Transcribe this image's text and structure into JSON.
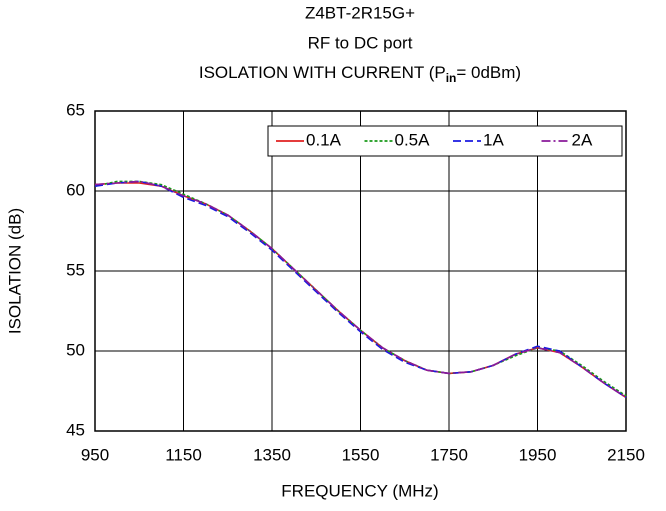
{
  "chart_data": {
    "type": "line",
    "title": [
      "Z4BT-2R15G+",
      "RF to DC port"
    ],
    "title_line3": {
      "text": "ISOLATION WITH CURRENT (P",
      "subscript": "in",
      "suffix": "= 0dBm)"
    },
    "xlabel": "FREQUENCY (MHz)",
    "ylabel": "ISOLATION (dB)",
    "x": [
      950,
      1000,
      1050,
      1100,
      1150,
      1200,
      1250,
      1300,
      1350,
      1400,
      1450,
      1500,
      1550,
      1600,
      1650,
      1700,
      1750,
      1800,
      1850,
      1900,
      1950,
      2000,
      2050,
      2100,
      2150
    ],
    "series": [
      {
        "name": "0.1A",
        "color": "#e02020",
        "dash": "solid",
        "values": [
          60.4,
          60.5,
          60.5,
          60.3,
          59.7,
          59.2,
          58.5,
          57.5,
          56.4,
          55.1,
          53.8,
          52.5,
          51.3,
          50.2,
          49.4,
          48.8,
          48.6,
          48.7,
          49.1,
          49.8,
          50.2,
          49.9,
          49.0,
          48.0,
          47.1
        ]
      },
      {
        "name": "0.5A",
        "color": "#1a9a1a",
        "dash": "dot",
        "values": [
          60.3,
          60.6,
          60.6,
          60.4,
          59.8,
          59.2,
          58.5,
          57.5,
          56.4,
          55.1,
          53.8,
          52.5,
          51.3,
          50.2,
          49.4,
          48.8,
          48.6,
          48.7,
          49.1,
          49.7,
          50.2,
          50.0,
          49.1,
          48.1,
          47.2
        ]
      },
      {
        "name": "1A",
        "color": "#1a1ae0",
        "dash": "dash",
        "values": [
          60.3,
          60.5,
          60.6,
          60.3,
          59.6,
          59.1,
          58.4,
          57.4,
          56.3,
          55.0,
          53.7,
          52.4,
          51.2,
          50.1,
          49.3,
          48.8,
          48.6,
          48.7,
          49.1,
          49.8,
          50.3,
          50.0,
          49.0,
          48.0,
          47.1
        ]
      },
      {
        "name": "2A",
        "color": "#8a1a9a",
        "dash": "dashdot",
        "values": [
          60.4,
          60.5,
          60.6,
          60.3,
          59.7,
          59.2,
          58.5,
          57.5,
          56.4,
          55.1,
          53.8,
          52.5,
          51.3,
          50.2,
          49.4,
          48.8,
          48.6,
          48.7,
          49.1,
          49.8,
          50.2,
          49.9,
          49.0,
          48.0,
          47.1
        ]
      }
    ],
    "xlim": [
      950,
      2150
    ],
    "xticks": [
      950,
      1150,
      1350,
      1550,
      1750,
      1950,
      2150
    ],
    "ylim": [
      45,
      65
    ],
    "yticks": [
      45,
      50,
      55,
      60,
      65
    ],
    "grid": true,
    "legend": "top-right"
  }
}
